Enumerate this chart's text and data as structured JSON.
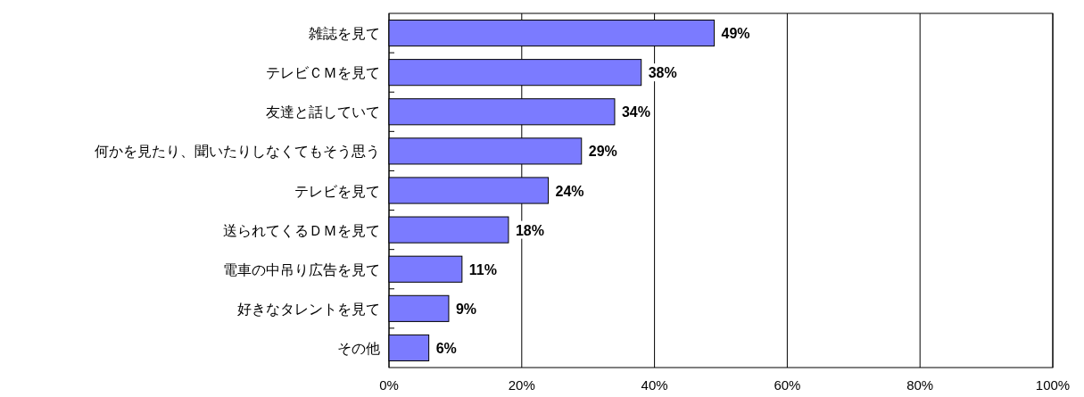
{
  "chart_data": {
    "type": "bar",
    "orientation": "horizontal",
    "categories": [
      "雑誌を見て",
      "テレビＣＭを見て",
      "友達と話していて",
      "何かを見たり、聞いたりしなくてもそう思う",
      "テレビを見て",
      "送られてくるＤＭを見て",
      "電車の中吊り広告を見て",
      "好きなタレントを見て",
      "その他"
    ],
    "values": [
      49,
      38,
      34,
      29,
      24,
      18,
      11,
      9,
      6
    ],
    "value_labels": [
      "49%",
      "38%",
      "34%",
      "29%",
      "24%",
      "18%",
      "11%",
      "9%",
      "6%"
    ],
    "color": "#7b7bff",
    "xlim": [
      0,
      100
    ],
    "xticks": [
      {
        "value": 0,
        "label": "0%"
      },
      {
        "value": 20,
        "label": "20%"
      },
      {
        "value": 40,
        "label": "40%"
      },
      {
        "value": 60,
        "label": "60%"
      },
      {
        "value": 80,
        "label": "80%"
      },
      {
        "value": 100,
        "label": "100%"
      }
    ],
    "grid": "x"
  }
}
